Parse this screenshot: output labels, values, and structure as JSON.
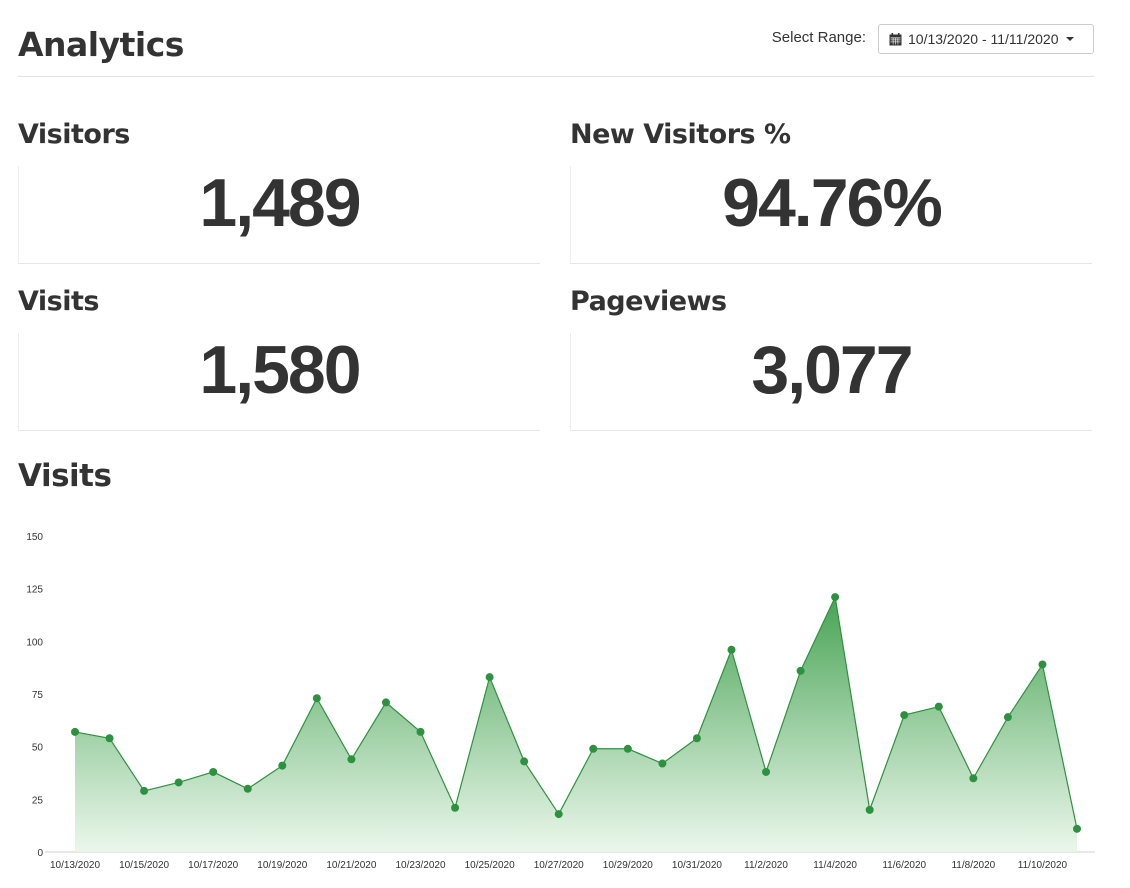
{
  "header": {
    "title": "Analytics",
    "range_label": "Select Range:",
    "range_value": "10/13/2020 - 11/11/2020"
  },
  "stats": {
    "visitors": {
      "label": "Visitors",
      "value": "1,489"
    },
    "new_visitors": {
      "label": "New Visitors %",
      "value": "94.76%"
    },
    "visits": {
      "label": "Visits",
      "value": "1,580"
    },
    "pageviews": {
      "label": "Pageviews",
      "value": "3,077"
    }
  },
  "chart_section": {
    "title": "Visits"
  },
  "icons": {
    "calendar": "calendar-icon",
    "caret": "chevron-down-icon"
  },
  "colors": {
    "line": "#2e9140",
    "point": "#2e9140",
    "fill_top": "#3e9f4b",
    "fill_bottom": "#e9f6ea"
  },
  "chart_data": {
    "type": "area",
    "x": [
      "10/13/2020",
      "10/14/2020",
      "10/15/2020",
      "10/16/2020",
      "10/17/2020",
      "10/18/2020",
      "10/19/2020",
      "10/20/2020",
      "10/21/2020",
      "10/22/2020",
      "10/23/2020",
      "10/24/2020",
      "10/25/2020",
      "10/26/2020",
      "10/27/2020",
      "10/28/2020",
      "10/29/2020",
      "10/30/2020",
      "10/31/2020",
      "11/1/2020",
      "11/2/2020",
      "11/3/2020",
      "11/4/2020",
      "11/5/2020",
      "11/6/2020",
      "11/7/2020",
      "11/8/2020",
      "11/9/2020",
      "11/10/2020",
      "11/11/2020"
    ],
    "x_tick_labels": [
      "10/13/2020",
      "10/15/2020",
      "10/17/2020",
      "10/19/2020",
      "10/21/2020",
      "10/23/2020",
      "10/25/2020",
      "10/27/2020",
      "10/29/2020",
      "10/31/2020",
      "11/2/2020",
      "11/4/2020",
      "11/6/2020",
      "11/8/2020",
      "11/10/2020"
    ],
    "series": [
      {
        "values": [
          57,
          54,
          29,
          33,
          38,
          30,
          41,
          73,
          44,
          71,
          57,
          21,
          83,
          43,
          18,
          49,
          49,
          42,
          54,
          96,
          38,
          86,
          121,
          20,
          65,
          69,
          35,
          64,
          89,
          11
        ]
      }
    ],
    "ylim": [
      0,
      150
    ],
    "y_ticks": [
      0,
      25,
      50,
      75,
      100,
      125,
      150
    ],
    "title": "",
    "xlabel": "",
    "ylabel": "",
    "grid": false,
    "legend": "none"
  }
}
